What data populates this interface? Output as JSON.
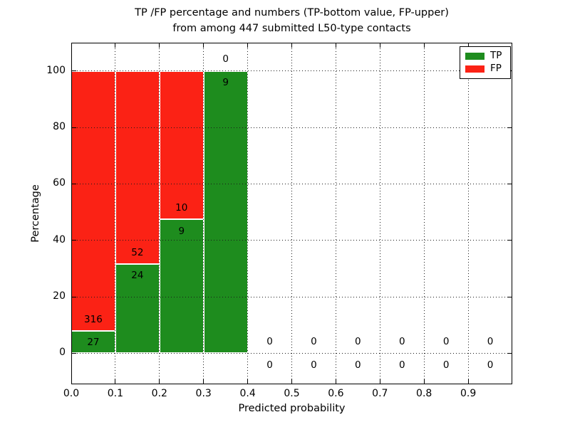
{
  "figure": {
    "title_line1": "TP /FP percentage and numbers (TP-bottom value, FP-upper)",
    "title_line2": "from among 447 submitted L50-type contacts"
  },
  "chart_data": {
    "type": "bar",
    "stacked": true,
    "title": "TP /FP percentage and numbers (TP-bottom value, FP-upper)\nfrom among 447 submitted L50-type contacts",
    "xlabel": "Predicted probability",
    "ylabel": "Percentage",
    "xlim": [
      0.0,
      1.0
    ],
    "ylim": [
      -11,
      110
    ],
    "grid": true,
    "legend_position": "upper right",
    "xticks": [
      0.0,
      0.1,
      0.2,
      0.3,
      0.4,
      0.5,
      0.6,
      0.7,
      0.8,
      0.9
    ],
    "xtick_labels": [
      "0.0",
      "0.1",
      "0.2",
      "0.3",
      "0.4",
      "0.5",
      "0.6",
      "0.7",
      "0.8",
      "0.9"
    ],
    "yticks": [
      0,
      20,
      40,
      60,
      80,
      100
    ],
    "ytick_labels": [
      "0",
      "20",
      "40",
      "60",
      "80",
      "100"
    ],
    "bin_edges": [
      0.0,
      0.1,
      0.2,
      0.3,
      0.4,
      0.5,
      0.6,
      0.7,
      0.8,
      0.9,
      1.0
    ],
    "categories": [
      "0.0-0.1",
      "0.1-0.2",
      "0.2-0.3",
      "0.3-0.4",
      "0.4-0.5",
      "0.5-0.6",
      "0.6-0.7",
      "0.7-0.8",
      "0.8-0.9",
      "0.9-1.0"
    ],
    "series": [
      {
        "name": "TP",
        "color": "#1e8c1e",
        "counts": [
          27,
          24,
          9,
          9,
          0,
          0,
          0,
          0,
          0,
          0
        ],
        "percent": [
          7.87,
          31.58,
          47.37,
          100.0,
          0,
          0,
          0,
          0,
          0,
          0
        ]
      },
      {
        "name": "FP",
        "color": "#fb2215",
        "counts": [
          316,
          52,
          10,
          0,
          0,
          0,
          0,
          0,
          0,
          0
        ],
        "percent": [
          92.13,
          68.42,
          52.63,
          0.0,
          0,
          0,
          0,
          0,
          0,
          0
        ]
      }
    ]
  }
}
